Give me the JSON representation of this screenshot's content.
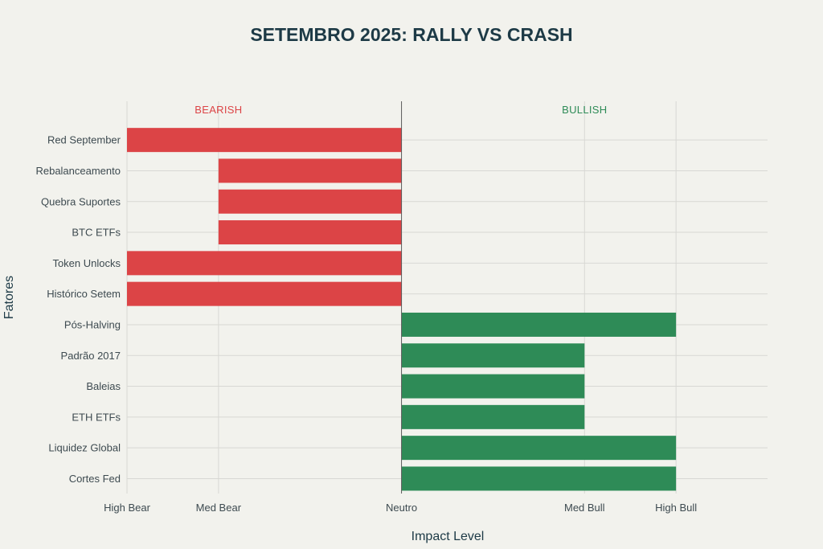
{
  "chart_data": {
    "type": "bar",
    "orientation": "horizontal",
    "title": "SETEMBRO 2025: RALLY VS CRASH",
    "xlabel": "Impact Level",
    "ylabel": "Fatores",
    "xlim": [
      -3.0,
      4.0
    ],
    "xticks": [
      {
        "value": -3,
        "label": "High Bear"
      },
      {
        "value": -2,
        "label": "Med Bear"
      },
      {
        "value": 0,
        "label": "Neutro"
      },
      {
        "value": 2,
        "label": "Med Bull"
      },
      {
        "value": 3,
        "label": "High Bull"
      }
    ],
    "categories": [
      "Red September",
      "Rebalanceamento",
      "Quebra Suportes",
      "BTC ETFs",
      "Token Unlocks",
      "Histórico Setem",
      "Pós-Halving",
      "Padrão 2017",
      "Baleias",
      "ETH ETFs",
      "Liquidez Global",
      "Cortes Fed"
    ],
    "values": [
      -3,
      -2,
      -2,
      -2,
      -3,
      -3,
      3,
      2,
      2,
      2,
      3,
      3
    ],
    "colors": {
      "bearish": "#dc4446",
      "bullish": "#2e8b57"
    },
    "annotations": [
      {
        "text": "BEARISH",
        "x": -2.0,
        "color": "#dc4446"
      },
      {
        "text": "BULLISH",
        "x": 2.0,
        "color": "#2e8b57"
      }
    ],
    "grid": true,
    "legend": "none"
  }
}
